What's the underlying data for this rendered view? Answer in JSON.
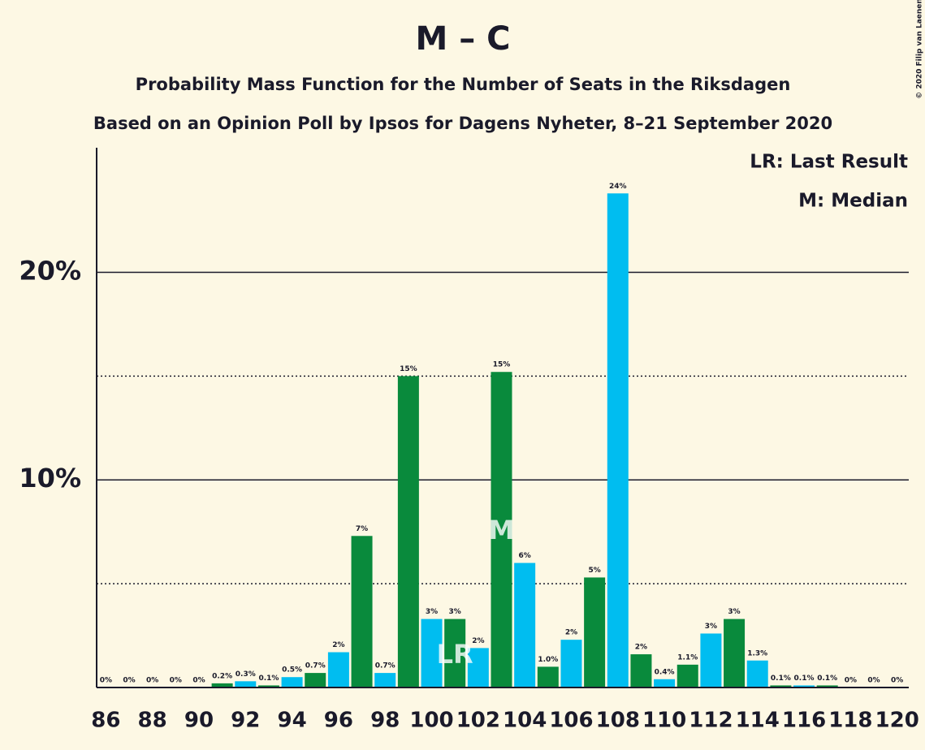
{
  "chart_data": {
    "type": "bar",
    "title": "M – C",
    "subtitle": "Probability Mass Function for the Number of Seats in the Riksdagen",
    "subtitle2": "Based on an Opinion Poll by Ipsos for Dagens Nyheter, 8–21 September 2020",
    "copyright": "© 2020 Filip van Laenen",
    "categories": [
      86,
      null,
      88,
      null,
      90,
      null,
      92,
      null,
      94,
      null,
      96,
      null,
      98,
      null,
      100,
      null,
      102,
      null,
      104,
      null,
      106,
      null,
      108,
      null,
      110,
      null,
      112,
      null,
      114,
      null,
      116,
      null,
      118,
      null,
      120
    ],
    "values": [
      0,
      0,
      0,
      0,
      0,
      0.2,
      0.3,
      0.1,
      0.5,
      0.7,
      1.7,
      7.3,
      0.7,
      15.0,
      3.3,
      3.3,
      1.9,
      15.2,
      6.0,
      1.0,
      2.3,
      5.3,
      23.8,
      1.6,
      0.4,
      1.1,
      2.6,
      3.3,
      1.3,
      0.1,
      0.1,
      0.1,
      0,
      0,
      0
    ],
    "value_labels": [
      "0%",
      "0%",
      "0%",
      "0%",
      "0%",
      "0.2%",
      "0.3%",
      "0.1%",
      "0.5%",
      "0.7%",
      "2%",
      "7%",
      "0.7%",
      "15%",
      "3%",
      "3%",
      "2%",
      "15%",
      "6%",
      "1.0%",
      "2%",
      "5%",
      "24%",
      "2%",
      "0.4%",
      "1.1%",
      "3%",
      "3%",
      "1.3%",
      "0.1%",
      "0.1%",
      "0.1%",
      "0%",
      "0%",
      "0%"
    ],
    "color_cycle": [
      "#00bdf0",
      "#098a3c"
    ],
    "ylim": [
      0,
      26
    ],
    "yticks": [
      {
        "value": 10,
        "label": "10%"
      },
      {
        "value": 20,
        "label": "20%"
      }
    ],
    "yminorticks": [
      5,
      15
    ],
    "grid": true,
    "annotations": [
      {
        "text": "LR",
        "category_index": 15
      },
      {
        "text": "M",
        "category_index": 17
      }
    ],
    "legend": [
      "LR: Last Result",
      "M: Median"
    ]
  }
}
